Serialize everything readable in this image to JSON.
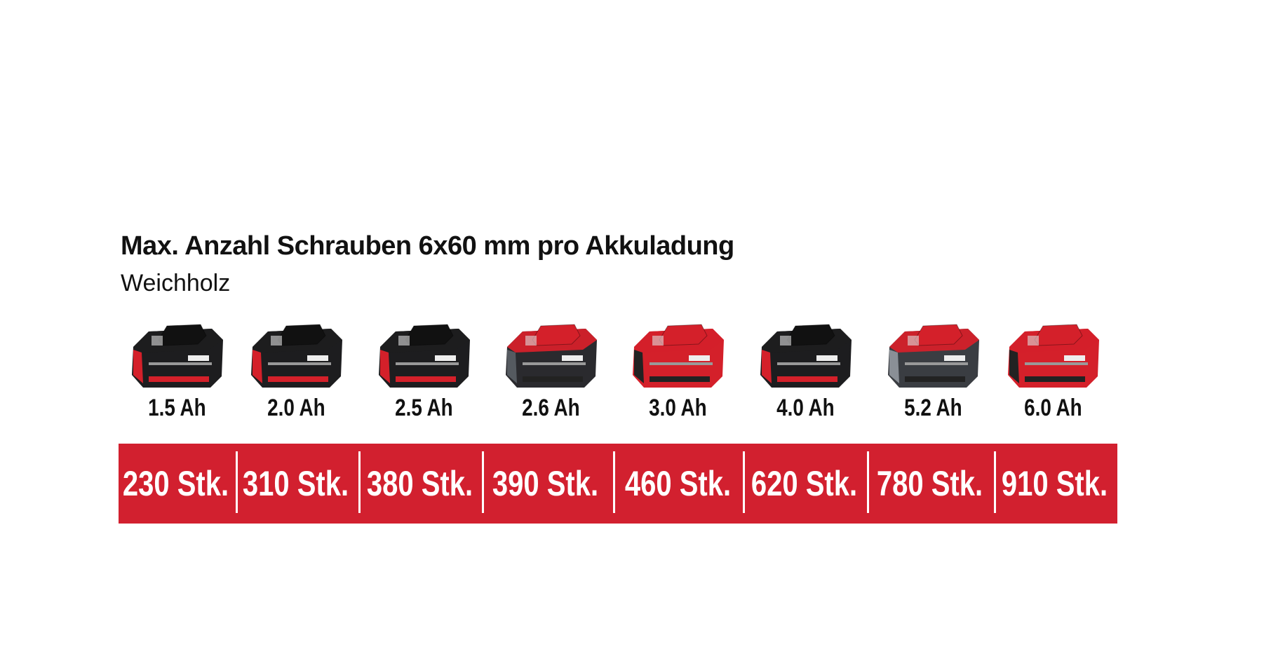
{
  "title": "Max. Anzahl Schrauben 6x60 mm pro Akkuladung",
  "subtitle": "Weichholz",
  "colors": {
    "accent": "#d2202f",
    "battery_dark": "#1d1d1f",
    "battery_red": "#d4202a"
  },
  "batteries": [
    {
      "capacity": "1.5 Ah",
      "screws": "230 Stk.",
      "icon": "battery-pack-icon",
      "style": "dark"
    },
    {
      "capacity": "2.0 Ah",
      "screws": "310 Stk.",
      "icon": "battery-pack-icon",
      "style": "dark"
    },
    {
      "capacity": "2.5 Ah",
      "screws": "380 Stk.",
      "icon": "battery-pack-icon",
      "style": "dark"
    },
    {
      "capacity": "2.6 Ah",
      "screws": "390 Stk.",
      "icon": "battery-pack-icon",
      "style": "red-top"
    },
    {
      "capacity": "3.0 Ah",
      "screws": "460 Stk.",
      "icon": "battery-pack-icon",
      "style": "red"
    },
    {
      "capacity": "4.0 Ah",
      "screws": "620 Stk.",
      "icon": "battery-pack-icon",
      "style": "dark"
    },
    {
      "capacity": "5.2 Ah",
      "screws": "780 Stk.",
      "icon": "battery-pack-icon",
      "style": "grey"
    },
    {
      "capacity": "6.0 Ah",
      "screws": "910 Stk.",
      "icon": "battery-pack-icon",
      "style": "red"
    }
  ]
}
